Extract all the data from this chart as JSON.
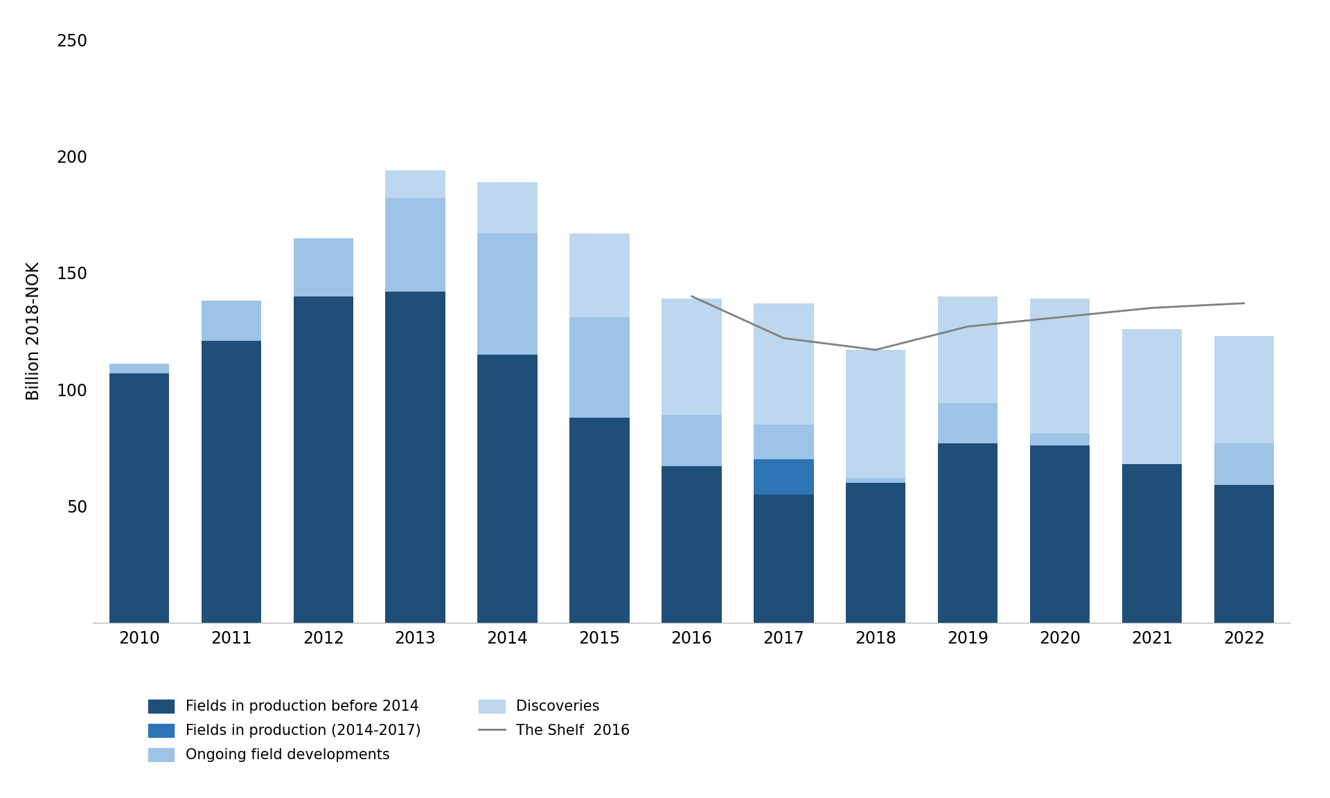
{
  "years": [
    2010,
    2011,
    2012,
    2013,
    2014,
    2015,
    2016,
    2017,
    2018,
    2019,
    2020,
    2021,
    2022
  ],
  "fields_before_2014": [
    107,
    121,
    140,
    142,
    115,
    88,
    67,
    55,
    60,
    77,
    76,
    68,
    59
  ],
  "fields_2014_2017": [
    0,
    0,
    0,
    0,
    0,
    0,
    0,
    15,
    0,
    0,
    0,
    0,
    0
  ],
  "ongoing_developments": [
    4,
    17,
    25,
    40,
    52,
    43,
    22,
    15,
    2,
    17,
    5,
    0,
    18
  ],
  "discoveries": [
    0,
    0,
    0,
    12,
    22,
    36,
    50,
    52,
    55,
    46,
    58,
    58,
    46
  ],
  "shelf_2016_x": [
    2016,
    2017,
    2018,
    2019,
    2020,
    2021,
    2022
  ],
  "shelf_2016_y": [
    140,
    122,
    117,
    127,
    131,
    135,
    137
  ],
  "color_before_2014": "#1f4e79",
  "color_2014_2017": "#2e75b6",
  "color_ongoing": "#9dc3e6",
  "color_discoveries": "#bdd7ee",
  "color_shelf": "#808080",
  "ylabel": "Billion 2018-NOK",
  "ylim": [
    0,
    250
  ],
  "yticks": [
    0,
    50,
    100,
    150,
    200,
    250
  ],
  "legend_labels": [
    "Fields in production before 2014",
    "Fields in production (2014-2017)",
    "Ongoing field developments",
    "Discoveries",
    "The Shelf  2016"
  ]
}
